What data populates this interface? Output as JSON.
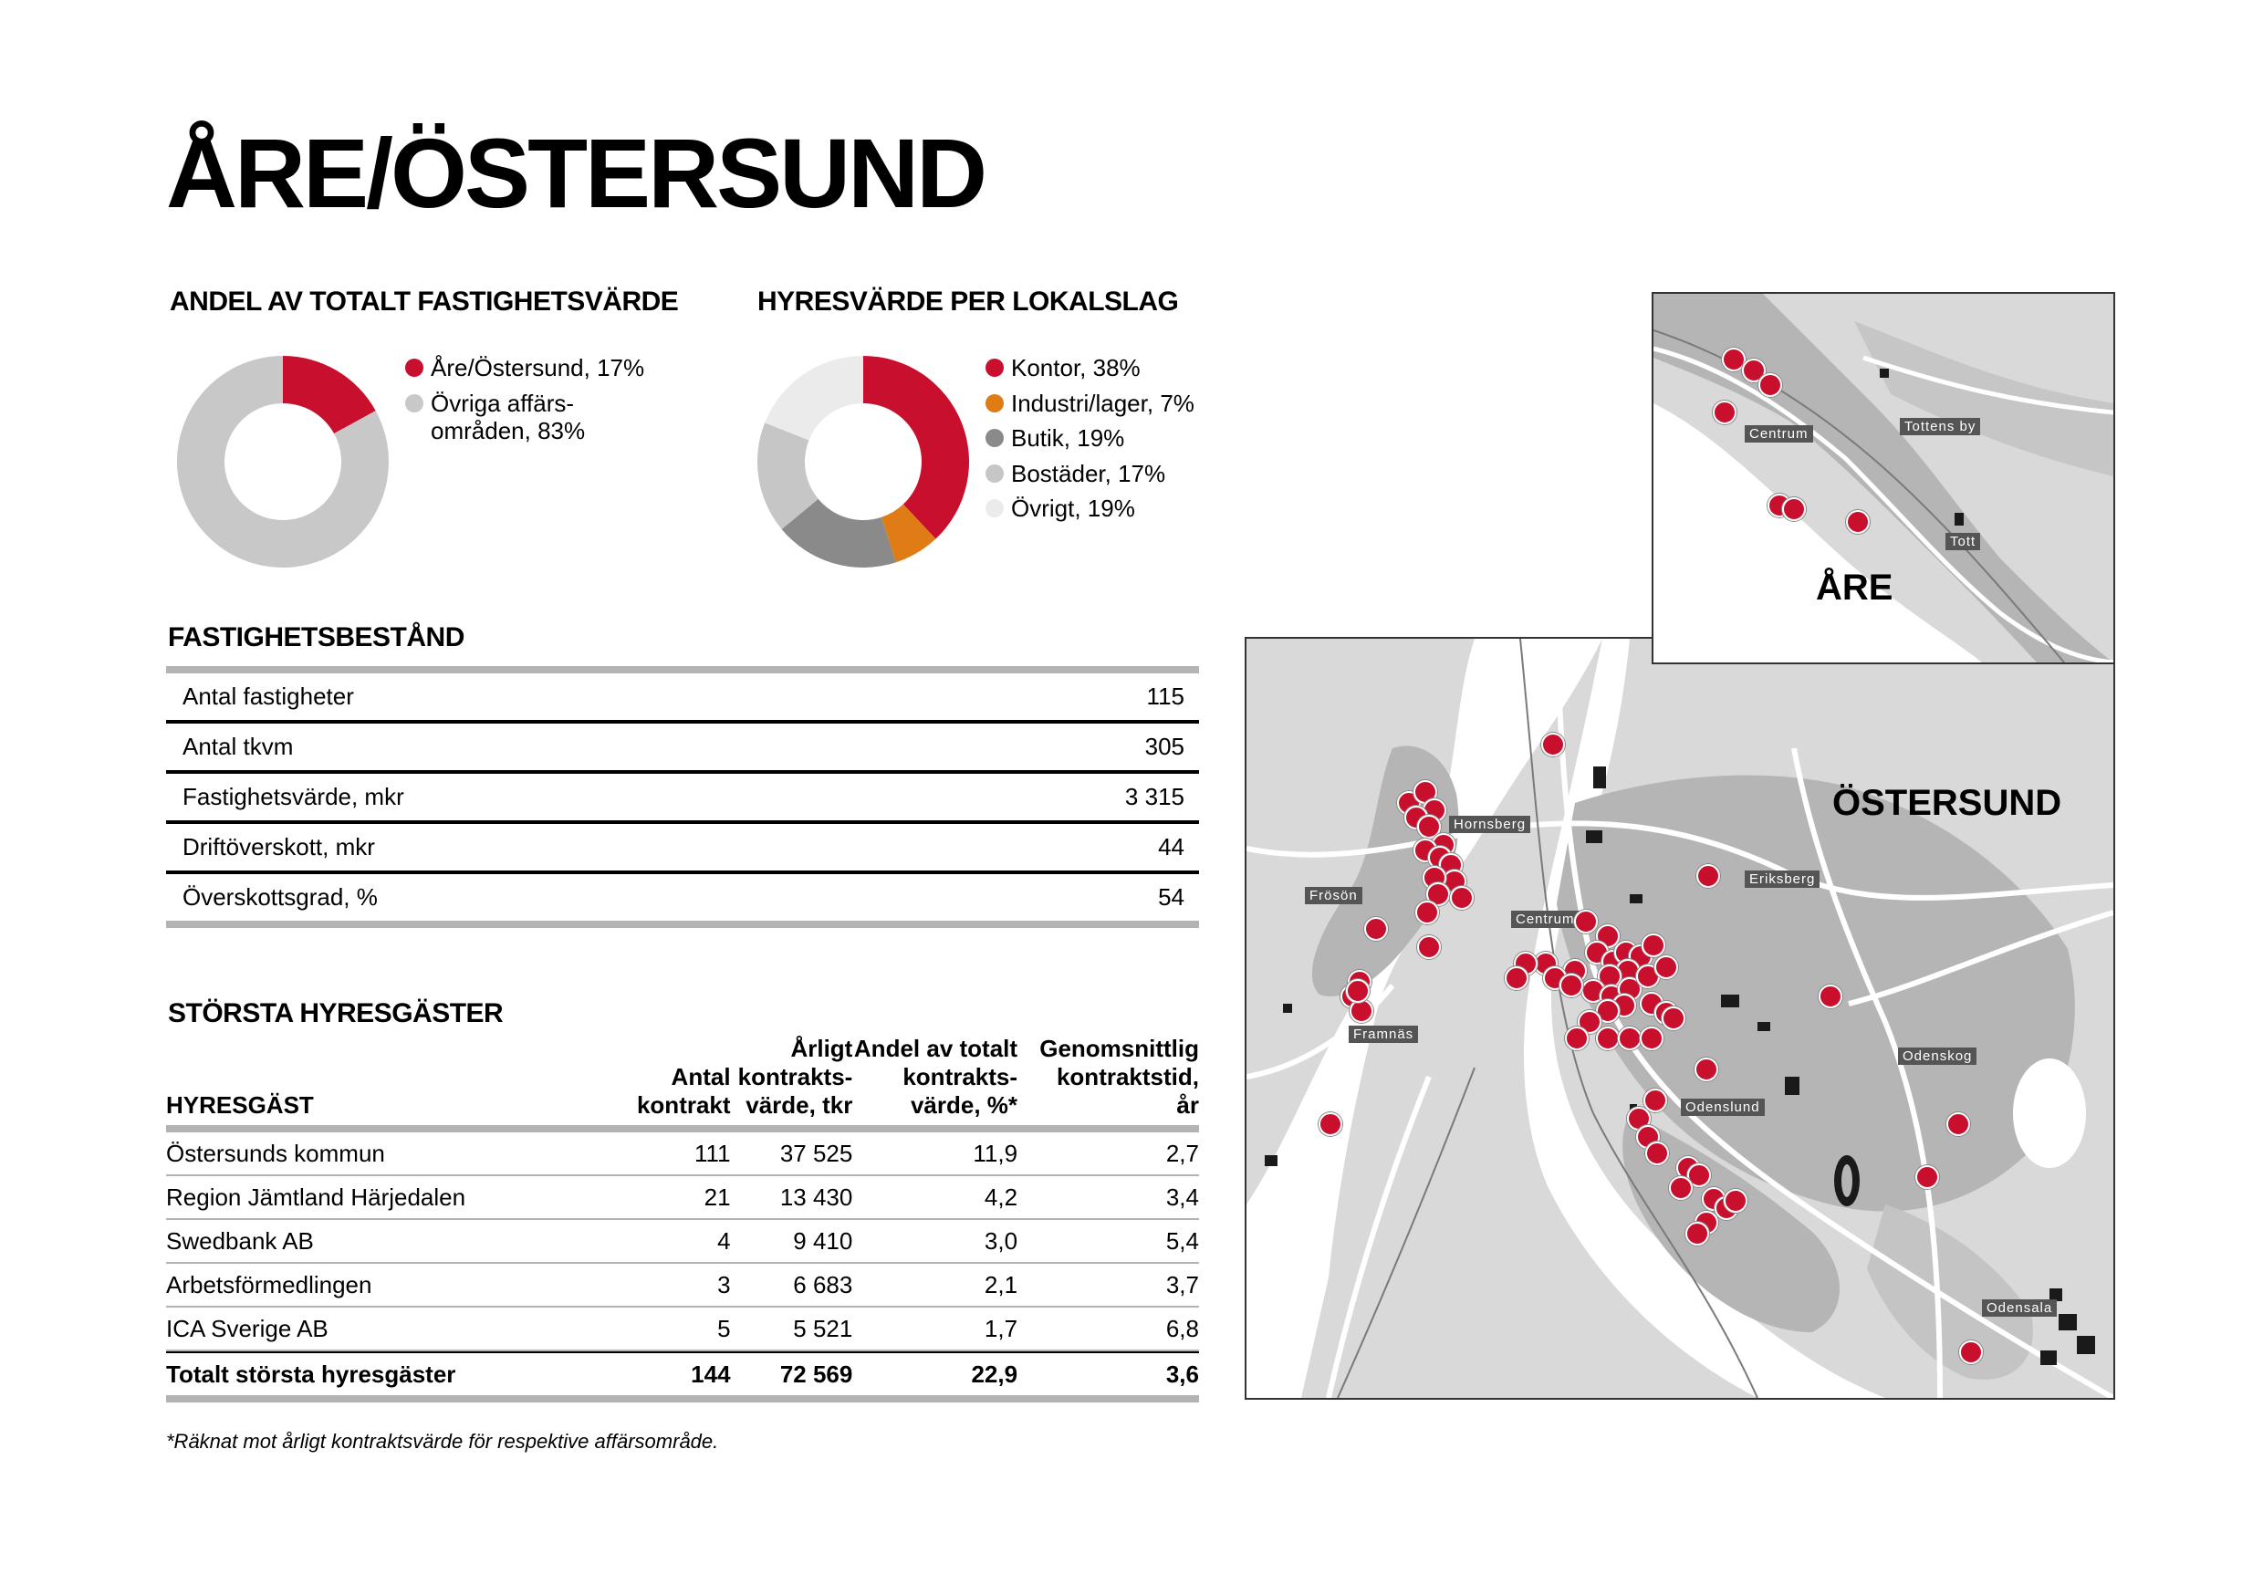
{
  "page": {
    "title": "ÅRE/ÖSTERSUND"
  },
  "share_chart": {
    "heading": "ANDEL AV TOTALT FASTIGHETSVÄRDE",
    "legend": [
      {
        "label": "Åre/Östersund, 17%",
        "color": "#c8102e"
      },
      {
        "label": "Övriga affärs-",
        "label2": "områden, 83%",
        "color": "#c8c8c8"
      }
    ]
  },
  "rent_chart": {
    "heading": "HYRESVÄRDE PER LOKALSLAG",
    "legend": [
      {
        "label": "Kontor, 38%",
        "color": "#c8102e"
      },
      {
        "label": "Industri/lager, 7%",
        "color": "#e07c16"
      },
      {
        "label": "Butik, 19%",
        "color": "#8a8a8a"
      },
      {
        "label": "Bostäder, 17%",
        "color": "#c6c6c6"
      },
      {
        "label": "Övrigt, 19%",
        "color": "#ebebeb"
      }
    ]
  },
  "chart_data": [
    {
      "type": "pie",
      "title": "ANDEL AV TOTALT FASTIGHETSVÄRDE",
      "categories": [
        "Åre/Östersund",
        "Övriga affärsområden"
      ],
      "values": [
        17,
        83
      ],
      "colors": [
        "#c8102e",
        "#c8c8c8"
      ]
    },
    {
      "type": "pie",
      "title": "HYRESVÄRDE PER LOKALSLAG",
      "categories": [
        "Kontor",
        "Industri/lager",
        "Butik",
        "Bostäder",
        "Övrigt"
      ],
      "values": [
        38,
        7,
        19,
        17,
        19
      ],
      "colors": [
        "#c8102e",
        "#e07c16",
        "#8a8a8a",
        "#c6c6c6",
        "#ebebeb"
      ]
    }
  ],
  "property": {
    "heading": "FASTIGHETSBESTÅND",
    "rows": [
      {
        "label": "Antal fastigheter",
        "value": "115"
      },
      {
        "label": "Antal tkvm",
        "value": "305"
      },
      {
        "label": "Fastighetsvärde, mkr",
        "value": "3 315"
      },
      {
        "label": "Driftöverskott, mkr",
        "value": "44"
      },
      {
        "label": "Överskottsgrad, %",
        "value": "54"
      }
    ]
  },
  "tenants": {
    "heading": "STÖRSTA HYRESGÄSTER",
    "columns": [
      {
        "l1": "",
        "l2": "",
        "l3": "HYRESGÄST"
      },
      {
        "l1": "",
        "l2": "Antal",
        "l3": "kontrakt"
      },
      {
        "l1": "Årligt",
        "l2": "kontrakts-",
        "l3": "värde, tkr"
      },
      {
        "l1": "Andel av totalt",
        "l2": "kontrakts-",
        "l3": "värde, %*"
      },
      {
        "l1": "Genomsnittlig",
        "l2": "kontraktstid,",
        "l3": "år"
      }
    ],
    "rows": [
      {
        "name": "Östersunds kommun",
        "count": "111",
        "value": "37 525",
        "share": "11,9",
        "term": "2,7"
      },
      {
        "name": "Region Jämtland Härjedalen",
        "count": "21",
        "value": "13 430",
        "share": "4,2",
        "term": "3,4"
      },
      {
        "name": "Swedbank AB",
        "count": "4",
        "value": "9 410",
        "share": "3,0",
        "term": "5,4"
      },
      {
        "name": "Arbetsförmedlingen",
        "count": "3",
        "value": "6 683",
        "share": "2,1",
        "term": "3,7"
      },
      {
        "name": "ICA Sverige AB",
        "count": "5",
        "value": "5 521",
        "share": "1,7",
        "term": "6,8"
      }
    ],
    "total": {
      "name": "Totalt största hyresgäster",
      "count": "144",
      "value": "72 569",
      "share": "22,9",
      "term": "3,6"
    },
    "footnote": "*Räknat mot årligt kontraktsvärde för respektive affärsområde."
  },
  "maps": {
    "are": {
      "name": "ÅRE",
      "labels": [
        "Centrum",
        "Tottens by",
        "Tott"
      ]
    },
    "ostersund": {
      "name": "ÖSTERSUND",
      "labels": [
        "Hornsberg",
        "Frösön",
        "Centrum",
        "Eriksberg",
        "Framnäs",
        "Odenskog",
        "Odenslund",
        "Odensala"
      ]
    }
  }
}
